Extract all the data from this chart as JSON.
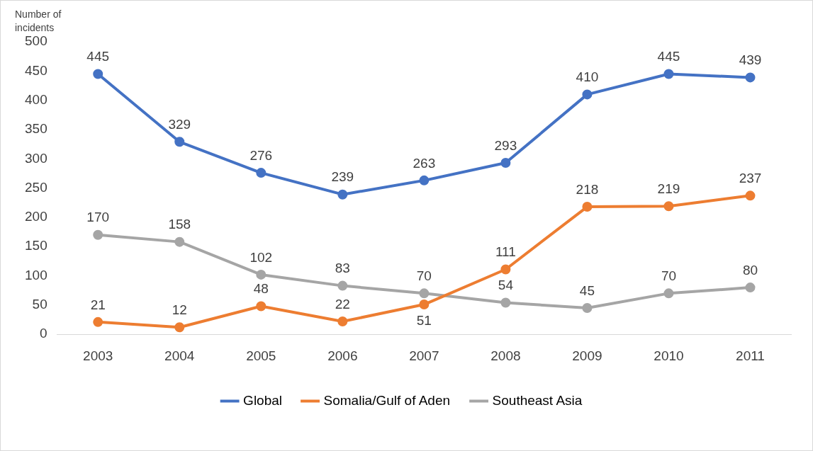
{
  "chart_data": {
    "type": "line",
    "ylabel": "Number of incidents",
    "categories": [
      "2003",
      "2004",
      "2005",
      "2006",
      "2007",
      "2008",
      "2009",
      "2010",
      "2011"
    ],
    "series": [
      {
        "name": "Global",
        "color": "#4472c4",
        "values": [
          445,
          329,
          276,
          239,
          263,
          293,
          410,
          445,
          439
        ]
      },
      {
        "name": "Somalia/Gulf of Aden",
        "color": "#ed7d31",
        "values": [
          21,
          12,
          48,
          22,
          51,
          111,
          218,
          219,
          237
        ]
      },
      {
        "name": "Southeast Asia",
        "color": "#a5a5a5",
        "values": [
          170,
          158,
          102,
          83,
          70,
          54,
          45,
          70,
          80
        ]
      }
    ],
    "ylim": [
      0,
      500
    ],
    "yticks": [
      0,
      50,
      100,
      150,
      200,
      250,
      300,
      350,
      400,
      450,
      500
    ],
    "grid": false,
    "legend": "bottom",
    "marker": "circle",
    "line_style": "solid",
    "data_labels": true
  }
}
